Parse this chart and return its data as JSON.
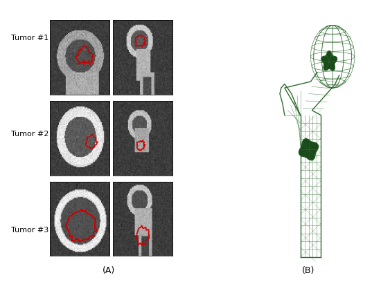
{
  "title_A": "(A)",
  "title_B": "(B)",
  "tumor_labels": [
    "Tumor #1",
    "Tumor #2",
    "Tumor #3"
  ],
  "label_fontsize": 8,
  "caption_fontsize": 9,
  "bg_color": "#ffffff",
  "ct_bg": "#888888",
  "green_color": "#2d6a2d",
  "red_color": "#cc0000",
  "fig_width": 5.5,
  "fig_height": 4.21
}
